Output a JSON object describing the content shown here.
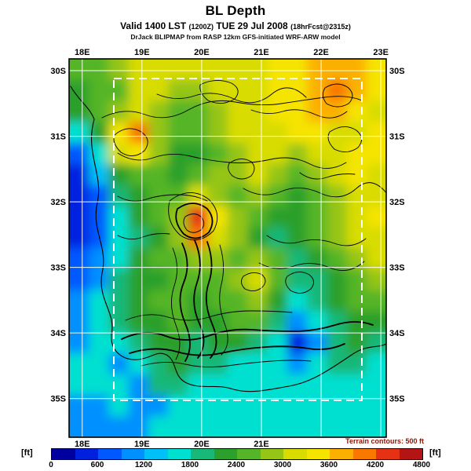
{
  "header": {
    "title": "BL Depth",
    "valid": {
      "text": "Valid 1400 LST",
      "zulu": "(1200Z)",
      "date": "TUE 29 Jul 2008",
      "fcst": "(18hrFcst@2315z)"
    },
    "model_line": "DrJack BLIPMAP from RASP 12km GFS-initiated WRF-ARW model"
  },
  "chart_data": {
    "type": "heatmap",
    "title": "BL Depth",
    "units": "ft",
    "terrain_note": "Terrain contours: 500 ft",
    "xlim": [
      17.78,
      23.09
    ],
    "ylim": [
      -35.59,
      -29.82
    ],
    "x_ticks": [
      {
        "value": 18,
        "label": "18E",
        "bottom": true
      },
      {
        "value": 19,
        "label": "19E",
        "bottom": true
      },
      {
        "value": 20,
        "label": "20E",
        "bottom": true
      },
      {
        "value": 21,
        "label": "21E",
        "bottom": true
      },
      {
        "value": 22,
        "label": "22E",
        "bottom": false
      },
      {
        "value": 23,
        "label": "23E",
        "bottom": false
      }
    ],
    "y_ticks": [
      {
        "value": -30,
        "label": "30S"
      },
      {
        "value": -31,
        "label": "31S"
      },
      {
        "value": -32,
        "label": "32S"
      },
      {
        "value": -33,
        "label": "33S"
      },
      {
        "value": -34,
        "label": "34S"
      },
      {
        "value": -35,
        "label": "35S"
      }
    ],
    "colorbar": {
      "units_label": "[ft]",
      "min": 0,
      "max": 4800,
      "step": 300,
      "tick_values": [
        0,
        600,
        1200,
        1800,
        2400,
        3000,
        3600,
        4200,
        4800
      ],
      "colors": [
        "#0000A0",
        "#0020E0",
        "#0058FF",
        "#0090FF",
        "#00C0F8",
        "#00E0D0",
        "#18B878",
        "#2CA02C",
        "#55B528",
        "#95C515",
        "#D8DC00",
        "#F5E400",
        "#FBB000",
        "#F87800",
        "#E63214",
        "#B41414"
      ]
    },
    "grid": {
      "note": "Approximate BL depth field (ft), 16 cols x 18 rows, west-to-east / north-to-south",
      "values": [
        [
          2400,
          2400,
          2700,
          3050,
          3050,
          3050,
          3050,
          3050,
          3200,
          3200,
          3350,
          3350,
          3650,
          3650,
          3650,
          3350
        ],
        [
          2100,
          2400,
          2400,
          3050,
          3050,
          2700,
          2700,
          3050,
          3200,
          3200,
          3350,
          3350,
          3650,
          3950,
          3650,
          3350
        ],
        [
          2100,
          2400,
          2700,
          3050,
          2700,
          2400,
          2400,
          2700,
          3050,
          3200,
          3350,
          3350,
          3650,
          3650,
          3350,
          3200
        ],
        [
          1500,
          2100,
          3500,
          3950,
          2700,
          2400,
          2400,
          2700,
          3050,
          3050,
          3200,
          3350,
          3350,
          3200,
          3200,
          3350
        ],
        [
          800,
          1500,
          3200,
          3500,
          2700,
          2100,
          2100,
          2400,
          2700,
          3050,
          3050,
          2700,
          3050,
          3200,
          3350,
          3350
        ],
        [
          500,
          1300,
          2100,
          2400,
          2400,
          2100,
          2400,
          2700,
          2700,
          3050,
          2700,
          2400,
          2700,
          3050,
          3350,
          3200
        ],
        [
          300,
          800,
          1800,
          2100,
          2400,
          2400,
          3200,
          2700,
          2400,
          2700,
          2400,
          2100,
          2400,
          2700,
          3050,
          3200
        ],
        [
          300,
          800,
          1500,
          2100,
          2400,
          2700,
          4400,
          3500,
          2700,
          2400,
          2100,
          2100,
          2400,
          2700,
          3050,
          3350
        ],
        [
          500,
          800,
          1500,
          1800,
          2100,
          2700,
          3950,
          3200,
          2700,
          2100,
          1800,
          2100,
          2400,
          2700,
          3050,
          3200
        ],
        [
          800,
          1100,
          1500,
          2100,
          2400,
          2400,
          2700,
          2700,
          2400,
          2700,
          2400,
          1800,
          2100,
          2400,
          2700,
          3200
        ],
        [
          800,
          1100,
          1800,
          2100,
          2100,
          2400,
          2400,
          2400,
          2700,
          3200,
          2400,
          1800,
          1800,
          2100,
          2400,
          2700
        ],
        [
          1100,
          1500,
          1800,
          2100,
          2400,
          2400,
          2100,
          2400,
          2400,
          2700,
          2100,
          1500,
          1800,
          2100,
          2400,
          2400
        ],
        [
          1100,
          1500,
          1800,
          2100,
          2100,
          2400,
          2100,
          2100,
          2400,
          2400,
          1800,
          1100,
          1500,
          1800,
          2100,
          2100
        ],
        [
          1100,
          1500,
          1500,
          1800,
          2100,
          2100,
          1800,
          2100,
          2100,
          1800,
          1500,
          500,
          1100,
          1800,
          2100,
          1800
        ],
        [
          1500,
          1500,
          1100,
          1500,
          1800,
          2100,
          1800,
          1800,
          1500,
          1500,
          1500,
          1100,
          1500,
          1800,
          1800,
          1500
        ],
        [
          1500,
          1500,
          1500,
          1100,
          1800,
          1800,
          1500,
          1500,
          1500,
          1500,
          1500,
          1500,
          1500,
          1500,
          1500,
          1500
        ],
        [
          1100,
          1100,
          1500,
          1100,
          1100,
          1500,
          1500,
          1500,
          1500,
          1500,
          1500,
          1500,
          1500,
          1500,
          1500,
          1500
        ],
        [
          1100,
          1100,
          1100,
          1100,
          1500,
          1500,
          1500,
          1500,
          1500,
          1500,
          1500,
          1500,
          1500,
          1500,
          1500,
          1500
        ]
      ]
    }
  }
}
